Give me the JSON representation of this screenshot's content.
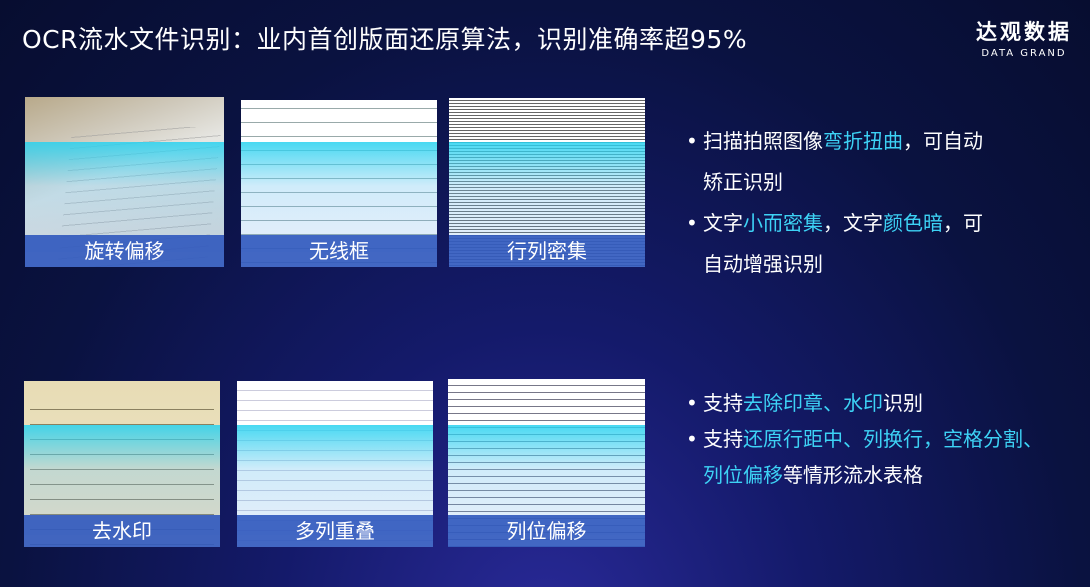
{
  "title": "OCR流水文件识别：业内首创版面还原算法，识别准确率超95%",
  "logo": {
    "cn": "达观数据",
    "en": "DATA GRAND"
  },
  "cards": [
    {
      "label": "旋转偏移"
    },
    {
      "label": "无线框"
    },
    {
      "label": "行列密集"
    },
    {
      "label": "去水印"
    },
    {
      "label": "多列重叠"
    },
    {
      "label": "列位偏移"
    }
  ],
  "bullets_top": [
    {
      "a": "扫描拍照图像",
      "h": "弯折扭曲",
      "b": "，可自动",
      "c": "矫正识别"
    },
    {
      "a": "文字",
      "h": "小而密集",
      "b": "，文字",
      "h2": "颜色暗",
      "b2": "，可",
      "c": "自动增强识别"
    }
  ],
  "bullets_bottom": [
    {
      "a": "支持",
      "h": "去除印章、水印",
      "b": "识别"
    },
    {
      "a": "支持",
      "h": "还原行距中、列换行，空格分割、",
      "h2": "列位偏移",
      "b": "等情形流水表格"
    }
  ],
  "colors": {
    "highlight": "#3dd2f5",
    "label_bar": "#325abe",
    "background": "#0a1240"
  }
}
